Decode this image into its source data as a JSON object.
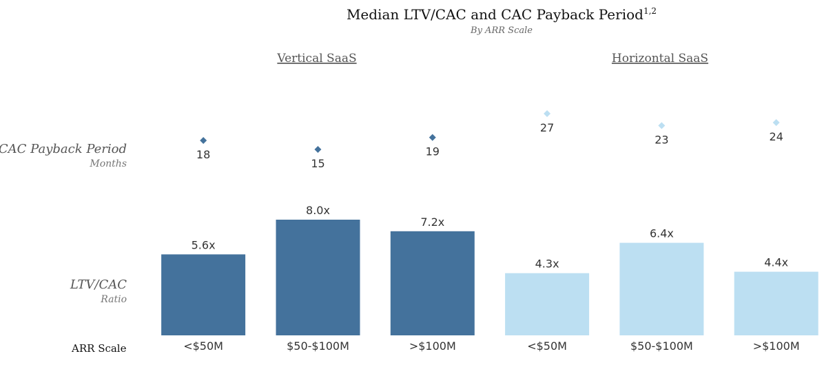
{
  "chart_data": {
    "type": "bar",
    "title": "Median LTV/CAC and CAC Payback Period",
    "title_superscript": "1,2",
    "subtitle": "By ARR Scale",
    "groups": [
      "Vertical SaaS",
      "Horizontal SaaS"
    ],
    "categories": [
      "<$50M",
      "$50-$100M",
      ">$100M",
      "<$50M",
      "$50-$100M",
      ">$100M"
    ],
    "category_group": [
      0,
      0,
      0,
      1,
      1,
      1
    ],
    "xlabel": "ARR Scale",
    "series": [
      {
        "row_label": "LTV/CAC",
        "row_sublabel": "Ratio",
        "mark": "bar",
        "values": [
          5.6,
          8.0,
          7.2,
          4.3,
          6.4,
          4.4
        ],
        "labels": [
          "5.6x",
          "8.0x",
          "7.2x",
          "4.3x",
          "6.4x",
          "4.4x"
        ]
      },
      {
        "row_label": "CAC Payback Period",
        "row_sublabel": "Months",
        "mark": "diamond",
        "values": [
          18,
          15,
          19,
          27,
          23,
          24
        ],
        "labels": [
          "18",
          "15",
          "19",
          "27",
          "23",
          "24"
        ]
      }
    ],
    "colors": {
      "vertical": "#44729c",
      "horizontal": "#bcdff2"
    },
    "grid": false,
    "legend": "none"
  }
}
